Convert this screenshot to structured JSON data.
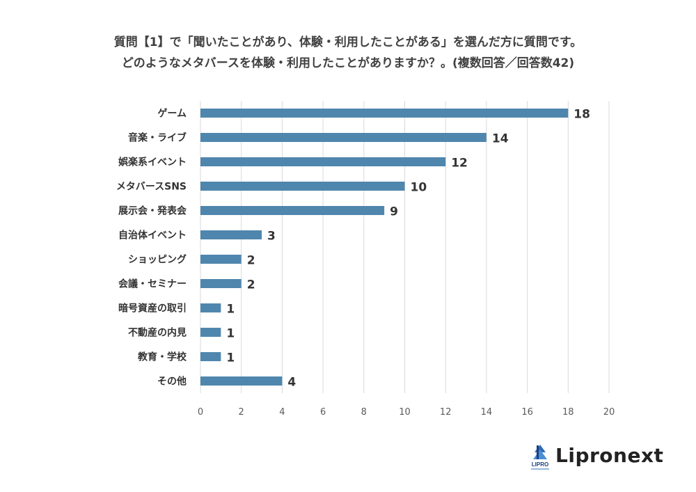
{
  "title": {
    "line1": "質問【1】で「聞いたことがあり、体験・利用したことがある」を選んだ方に質問です。",
    "line2": "どのようなメタバースを体験・利用したことがありますか？。(複数回答／回答数42)"
  },
  "chart_data": {
    "type": "bar",
    "orientation": "horizontal",
    "categories": [
      "ゲーム",
      "音楽・ライブ",
      "娯楽系イベント",
      "メタバースSNS",
      "展示会・発表会",
      "自治体イベント",
      "ショッピング",
      "会議・セミナー",
      "暗号資産の取引",
      "不動産の内見",
      "教育・学校",
      "その他"
    ],
    "values": [
      18,
      14,
      12,
      10,
      9,
      3,
      2,
      2,
      1,
      1,
      1,
      4
    ],
    "xlim": [
      0,
      20
    ],
    "xticks": [
      0,
      2,
      4,
      6,
      8,
      10,
      12,
      14,
      16,
      18,
      20
    ],
    "grid": "vertical",
    "data_labels": true,
    "bar_color": "#4f86ad"
  },
  "logo": {
    "text": "Lipronext",
    "mark_text": "LIPRO"
  }
}
